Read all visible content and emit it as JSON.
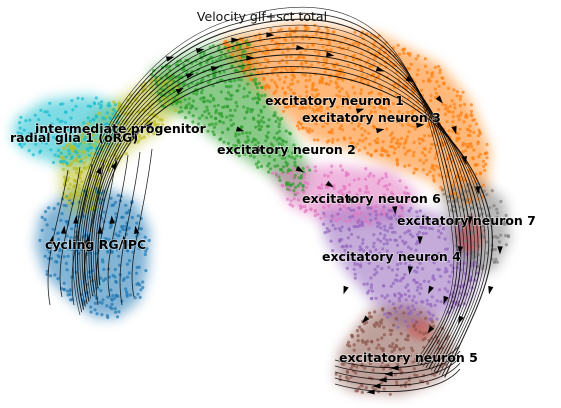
{
  "title": "Velocity glf+sct total",
  "clusters": [
    {
      "key": "rg",
      "label": "radial glia 1 (oRG)",
      "color": "#17becf"
    },
    {
      "key": "ip",
      "label": "intermediate progenitor",
      "color": "#bcbd22"
    },
    {
      "key": "cyc",
      "label": "cycling RG/IPC",
      "color": "#1f77b4"
    },
    {
      "key": "en1",
      "label": "excitatory neuron 1",
      "color": "#ff7f0e"
    },
    {
      "key": "en2",
      "label": "excitatory neuron 2",
      "color": "#2ca02c"
    },
    {
      "key": "en3",
      "label": "excitatory neuron 3",
      "color": "#ff7f0e"
    },
    {
      "key": "en4",
      "label": "excitatory neuron 4",
      "color": "#9467bd"
    },
    {
      "key": "en5",
      "label": "excitatory neuron 5",
      "color": "#8c564b"
    },
    {
      "key": "en6",
      "label": "excitatory neuron 6",
      "color": "#e377c2"
    },
    {
      "key": "en7",
      "label": "excitatory neuron 7",
      "color": "#7f7f7f"
    }
  ],
  "extra_colors": {
    "orange_dark": "#f0a050",
    "red": "#d62728",
    "tan": "#e1a06a"
  },
  "streamline_color": "#000000"
}
